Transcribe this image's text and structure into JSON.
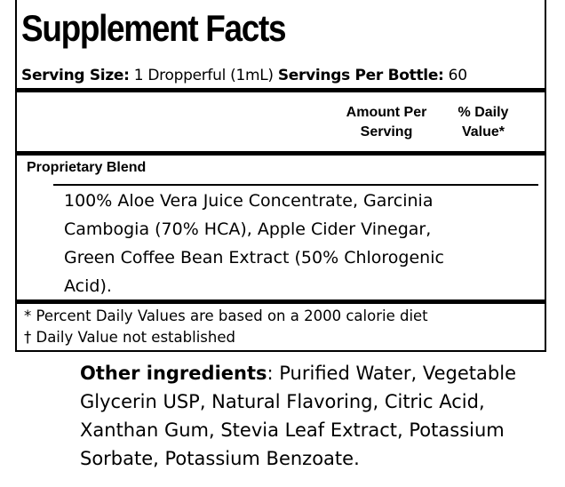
{
  "title": "Supplement Facts",
  "serving": {
    "size_label": "Serving Size:",
    "size_value": "1 Dropperful (1mL)",
    "per_label": "Servings Per Bottle:",
    "per_value": "60"
  },
  "columns": {
    "amount": "Amount Per Serving",
    "daily": "% Daily Value*"
  },
  "blend": {
    "name": "Proprietary Blend",
    "ingredients": "100% Aloe Vera Juice Concentrate, Garcinia Cambogia (70% HCA), Apple Cider Vinegar, Green Coffee Bean Extract (50% Chlorogenic Acid)."
  },
  "footnotes": [
    "* Percent Daily Values are based on a 2000 calorie diet",
    "† Daily Value not established"
  ],
  "other": {
    "label": "Other ingredients",
    "text": ": Purified Water, Vegetable Glycerin USP, Natural Flavoring, Citric Acid, Xanthan Gum, Stevia Leaf Extract, Potassium Sorbate, Potassium Benzoate."
  }
}
